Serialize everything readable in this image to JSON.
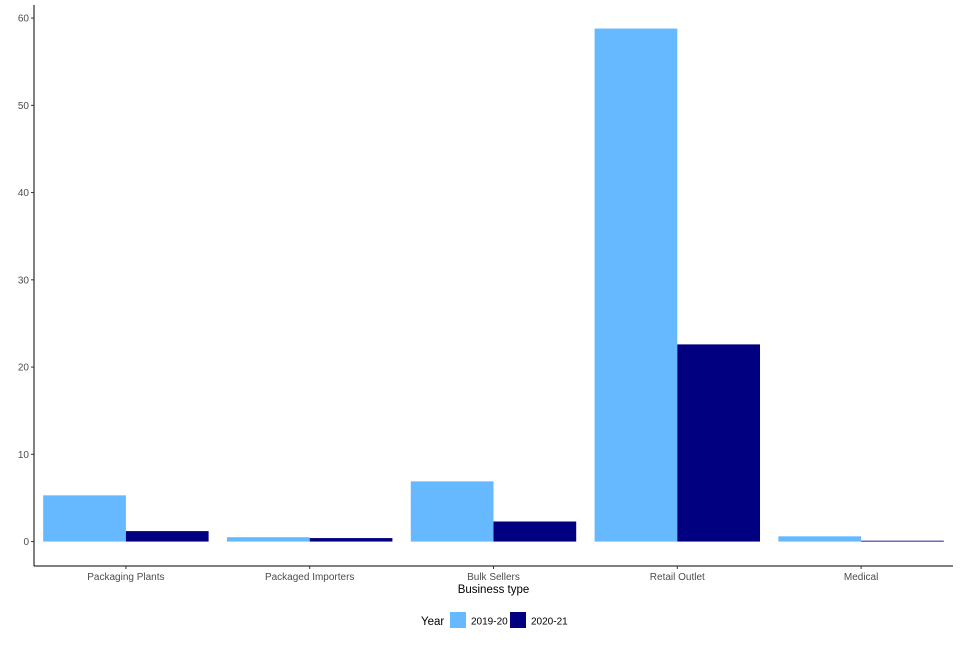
{
  "chart_data": {
    "type": "bar",
    "title": "",
    "xlabel": "Business type",
    "ylabel": "",
    "categories": [
      "Packaging Plants",
      "Packaged Importers",
      "Bulk Sellers",
      "Retail Outlet",
      "Medical"
    ],
    "series": [
      {
        "name": "2019-20",
        "color": "#66b8ff",
        "values": [
          5.3,
          0.5,
          6.9,
          58.8,
          0.6
        ]
      },
      {
        "name": "2020-21",
        "color": "#000080",
        "values": [
          1.2,
          0.4,
          2.3,
          22.6,
          0.1
        ]
      }
    ],
    "ylim": [
      -2.8,
      61.5
    ],
    "yticks": [
      0,
      10,
      20,
      30,
      40,
      50,
      60
    ],
    "grid": false,
    "legend": {
      "title": "Year",
      "position": "bottom"
    }
  }
}
